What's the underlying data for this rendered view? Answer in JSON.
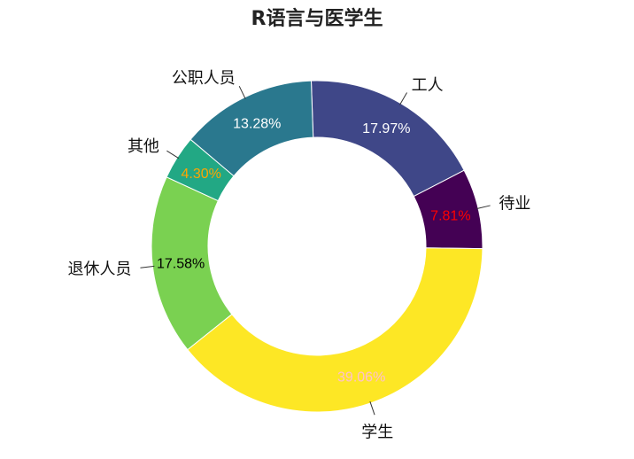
{
  "chart_data": {
    "type": "pie",
    "title": "R语言与医学生",
    "donut": true,
    "slices": [
      {
        "label": "工人",
        "value": 17.97,
        "pct_text": "17.97%",
        "color": "#3f4788",
        "text_color": "#ffffff"
      },
      {
        "label": "待业",
        "value": 7.81,
        "pct_text": "7.81%",
        "color": "#440154",
        "text_color": "#ff0000"
      },
      {
        "label": "学生",
        "value": 39.06,
        "pct_text": "39.06%",
        "color": "#fde725",
        "text_color": "#ffc0cb"
      },
      {
        "label": "退休人员",
        "value": 17.58,
        "pct_text": "17.58%",
        "color": "#7ad151",
        "text_color": "#000000"
      },
      {
        "label": "其他",
        "value": 4.3,
        "pct_text": "4.30%",
        "color": "#22a884",
        "text_color": "#ffa500"
      },
      {
        "label": "公职人员",
        "value": 13.28,
        "pct_text": "13.28%",
        "color": "#2a788e",
        "text_color": "#ffffff"
      }
    ]
  }
}
